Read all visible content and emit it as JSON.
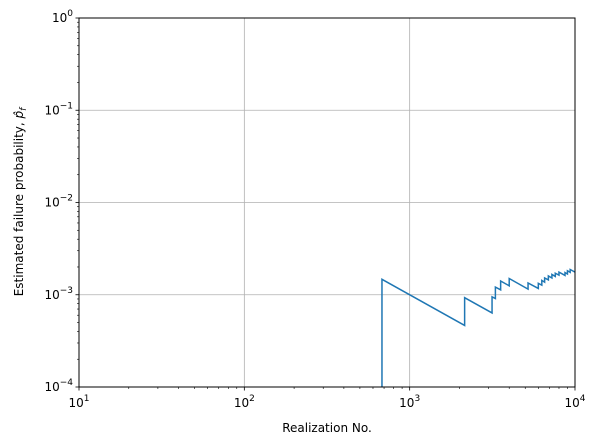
{
  "chart_data": {
    "type": "line",
    "xlabel": "Realization No.",
    "ylabel": "Estimated failure probability, ",
    "ylabel_symbol": "p̂",
    "ylabel_subscript": "f",
    "x_scale": "log",
    "y_scale": "log",
    "xlim": [
      10,
      10000
    ],
    "ylim": [
      0.0001,
      1
    ],
    "grid": true,
    "x_ticks": [
      {
        "value": 10,
        "base": "10",
        "exp": "1"
      },
      {
        "value": 100,
        "base": "10",
        "exp": "2"
      },
      {
        "value": 1000,
        "base": "10",
        "exp": "3"
      },
      {
        "value": 10000,
        "base": "10",
        "exp": "4"
      }
    ],
    "y_ticks": [
      {
        "value": 0.0001,
        "base": "10",
        "exp": "−4"
      },
      {
        "value": 0.001,
        "base": "10",
        "exp": "−3"
      },
      {
        "value": 0.01,
        "base": "10",
        "exp": "−2"
      },
      {
        "value": 0.1,
        "base": "10",
        "exp": "−1"
      },
      {
        "value": 1,
        "base": "10",
        "exp": "0"
      }
    ],
    "series": [
      {
        "color": "#1f77b4",
        "points": [
          [
            680,
            0.0001
          ],
          [
            680,
            0.00147
          ],
          [
            2150,
            0.000465
          ],
          [
            2150,
            0.00093
          ],
          [
            3150,
            0.000635
          ],
          [
            3150,
            0.00095
          ],
          [
            3300,
            0.00091
          ],
          [
            3300,
            0.00121
          ],
          [
            3550,
            0.00113
          ],
          [
            3550,
            0.00141
          ],
          [
            4000,
            0.00125
          ],
          [
            4000,
            0.0015
          ],
          [
            5200,
            0.00115
          ],
          [
            5200,
            0.00134
          ],
          [
            6000,
            0.00117
          ],
          [
            6000,
            0.00133
          ],
          [
            6300,
            0.00127
          ],
          [
            6300,
            0.00143
          ],
          [
            6550,
            0.00137
          ],
          [
            6550,
            0.00152
          ],
          [
            6900,
            0.00145
          ],
          [
            6900,
            0.0016
          ],
          [
            7250,
            0.00152
          ],
          [
            7250,
            0.00166
          ],
          [
            7600,
            0.00158
          ],
          [
            7600,
            0.00171
          ],
          [
            8000,
            0.00163
          ],
          [
            8000,
            0.00176
          ],
          [
            8700,
            0.00162
          ],
          [
            8700,
            0.00174
          ],
          [
            9000,
            0.00168
          ],
          [
            9000,
            0.00182
          ],
          [
            9350,
            0.00175
          ],
          [
            9350,
            0.00188
          ],
          [
            10000,
            0.00176
          ]
        ]
      }
    ]
  }
}
